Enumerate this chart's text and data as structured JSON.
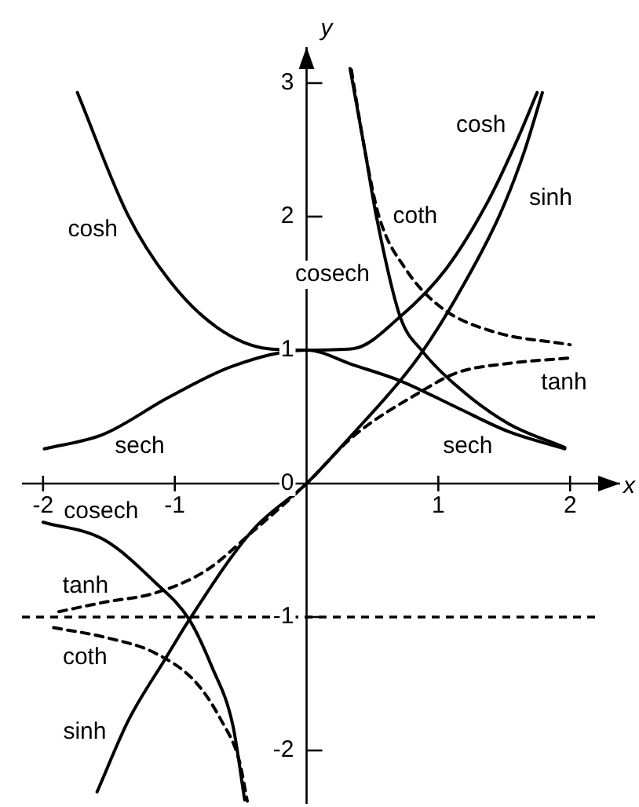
{
  "chart_data": {
    "type": "line",
    "xlabel": "x",
    "ylabel": "y",
    "xlim": [
      -2.16,
      2.38
    ],
    "ylim": [
      -2.4,
      3.27
    ],
    "xticks": [
      -2,
      -1,
      1,
      2
    ],
    "yticks": [
      -2,
      -1,
      0,
      1,
      2,
      3
    ],
    "grid": false,
    "legend": false,
    "marker": "none",
    "series": [
      {
        "name": "cosh",
        "color": "#000000",
        "line_style": "solid",
        "x": [
          -1.74,
          -1.36,
          -1.04,
          -0.68,
          -0.29,
          0,
          0.35,
          0.71,
          1.06,
          1.38,
          1.61,
          1.75
        ],
        "values": [
          2.93,
          2.02,
          1.52,
          1.17,
          1.01,
          1.0,
          1.01,
          1.25,
          1.61,
          2.12,
          2.6,
          2.93
        ]
      },
      {
        "name": "sinh",
        "color": "#000000",
        "line_style": "solid",
        "x": [
          -1.59,
          -1.35,
          -1.07,
          -0.89,
          -0.41,
          0,
          0.35,
          0.71,
          0.88,
          1.14,
          1.46,
          1.65,
          1.79
        ],
        "values": [
          -2.31,
          -1.77,
          -1.31,
          -1.02,
          -0.35,
          0,
          0.37,
          0.77,
          0.99,
          1.4,
          2.0,
          2.48,
          2.93
        ]
      },
      {
        "name": "tanh",
        "color": "#000000",
        "line_style": "dashed",
        "x": [
          -1.88,
          -1.54,
          -1.15,
          -0.76,
          -0.41,
          0,
          0.35,
          0.87,
          1.14,
          1.53,
          1.99
        ],
        "values": [
          -0.96,
          -0.89,
          -0.82,
          -0.65,
          -0.36,
          0,
          0.35,
          0.69,
          0.83,
          0.9,
          0.94
        ]
      },
      {
        "name": "coth",
        "color": "#000000",
        "line_style": "dashed",
        "x": [
          -1.92,
          -1.54,
          -1.15,
          -0.84,
          -0.65,
          -0.51,
          -0.45,
          0,
          0.34,
          0.44,
          0.55,
          0.75,
          1.02,
          1.41,
          2.0
        ],
        "values": [
          -1.08,
          -1.15,
          -1.27,
          -1.49,
          -1.77,
          -2.08,
          -2.38,
          null,
          3.1,
          2.51,
          2.0,
          1.61,
          1.32,
          1.14,
          1.04
        ]
      },
      {
        "name": "cosech",
        "color": "#000000",
        "line_style": "solid",
        "x": [
          -2.0,
          -1.54,
          -1.15,
          -0.89,
          -0.72,
          -0.56,
          -0.47,
          0,
          0.33,
          0.44,
          0.53,
          0.71,
          0.88,
          1.14,
          1.53,
          1.96
        ],
        "values": [
          -0.29,
          -0.42,
          -0.74,
          -1.02,
          -1.37,
          -1.81,
          -2.37,
          null,
          3.11,
          2.51,
          2.0,
          1.25,
          0.99,
          0.73,
          0.45,
          0.27
        ]
      },
      {
        "name": "sech",
        "color": "#000000",
        "line_style": "solid",
        "x": [
          -1.99,
          -1.54,
          -1.04,
          -0.56,
          0,
          0.35,
          0.71,
          1.14,
          1.53,
          1.96
        ],
        "values": [
          0.26,
          0.37,
          0.65,
          0.88,
          1.0,
          0.89,
          0.77,
          0.57,
          0.39,
          0.26
        ]
      }
    ],
    "ref_lines": [
      {
        "axis": "y",
        "value": -1,
        "color": "#000000",
        "line_style": "dashed"
      }
    ]
  }
}
